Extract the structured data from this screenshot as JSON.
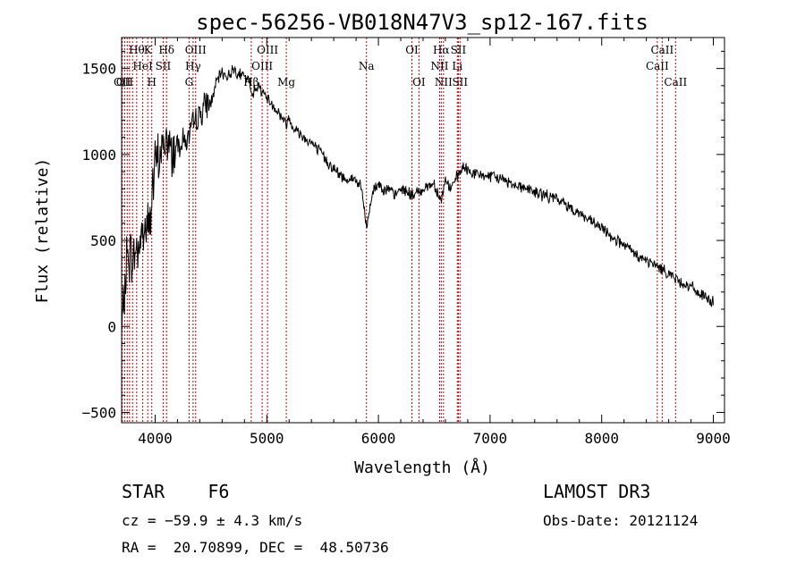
{
  "chart_data": {
    "type": "line",
    "title": "spec-56256-VB018N47V3_sp12-167.fits",
    "xlabel": "Wavelength (Å)",
    "ylabel": "Flux (relative)",
    "xlim": [
      3700,
      9100
    ],
    "ylim": [
      -560,
      1680
    ],
    "x_ticks": [
      4000,
      5000,
      6000,
      7000,
      8000,
      9000
    ],
    "y_ticks": [
      -500,
      0,
      500,
      1000,
      1500
    ],
    "series": [
      {
        "name": "spectrum",
        "color": "#000000",
        "x": [
          3700,
          3750,
          3800,
          3850,
          3900,
          3950,
          4000,
          4050,
          4100,
          4150,
          4200,
          4250,
          4300,
          4350,
          4400,
          4450,
          4500,
          4550,
          4600,
          4650,
          4700,
          4750,
          4800,
          4850,
          4861,
          4900,
          4950,
          5000,
          5050,
          5100,
          5150,
          5175,
          5200,
          5250,
          5300,
          5350,
          5400,
          5450,
          5500,
          5550,
          5600,
          5650,
          5700,
          5750,
          5800,
          5850,
          5893,
          5950,
          6000,
          6050,
          6100,
          6150,
          6200,
          6250,
          6300,
          6350,
          6400,
          6450,
          6500,
          6563,
          6600,
          6650,
          6700,
          6750,
          6800,
          6850,
          6900,
          6950,
          7000,
          7100,
          7200,
          7300,
          7400,
          7500,
          7600,
          7700,
          7800,
          7900,
          8000,
          8100,
          8200,
          8300,
          8400,
          8500,
          8600,
          8700,
          8800,
          8900,
          9000
        ],
        "values": [
          -50,
          420,
          390,
          470,
          560,
          610,
          930,
          1010,
          1080,
          1010,
          1070,
          1080,
          1090,
          1190,
          1230,
          1290,
          1300,
          1420,
          1480,
          1450,
          1500,
          1470,
          1450,
          1420,
          1330,
          1400,
          1380,
          1330,
          1290,
          1250,
          1200,
          1180,
          1210,
          1150,
          1120,
          1090,
          1070,
          1030,
          1000,
          950,
          920,
          880,
          860,
          860,
          850,
          800,
          570,
          790,
          830,
          800,
          790,
          760,
          800,
          790,
          760,
          780,
          800,
          820,
          830,
          730,
          850,
          800,
          860,
          920,
          910,
          890,
          880,
          880,
          870,
          860,
          830,
          810,
          780,
          760,
          740,
          700,
          660,
          610,
          570,
          520,
          470,
          420,
          380,
          350,
          310,
          260,
          230,
          180,
          140
        ]
      }
    ],
    "lines": [
      {
        "wl": 3705,
        "label": "OII",
        "row": 2
      },
      {
        "wl": 3727,
        "label": "OII",
        "row": 2
      },
      {
        "wl": 3750,
        "label": "",
        "row": 0
      },
      {
        "wl": 3771,
        "label": "",
        "row": 0
      },
      {
        "wl": 3798,
        "label": "",
        "row": 0
      },
      {
        "wl": 3835,
        "label": "Hθ",
        "row": 0
      },
      {
        "wl": 3889,
        "label": "HeI",
        "row": 1
      },
      {
        "wl": 3934,
        "label": "K",
        "row": 0
      },
      {
        "wl": 3970,
        "label": "H",
        "row": 2
      },
      {
        "wl": 4072,
        "label": "SII",
        "row": 1
      },
      {
        "wl": 4102,
        "label": "Hδ",
        "row": 0
      },
      {
        "wl": 4304,
        "label": "G",
        "row": 2
      },
      {
        "wl": 4340,
        "label": "Hγ",
        "row": 1
      },
      {
        "wl": 4363,
        "label": "OIII",
        "row": 0
      },
      {
        "wl": 4861,
        "label": "Hβ",
        "row": 2
      },
      {
        "wl": 4959,
        "label": "OIII",
        "row": 1
      },
      {
        "wl": 5007,
        "label": "OIII",
        "row": 0
      },
      {
        "wl": 5175,
        "label": "Mg",
        "row": 2
      },
      {
        "wl": 5893,
        "label": "Na",
        "row": 1
      },
      {
        "wl": 6300,
        "label": "OI",
        "row": 0
      },
      {
        "wl": 6363,
        "label": "OI",
        "row": 2
      },
      {
        "wl": 6548,
        "label": "NII",
        "row": 1
      },
      {
        "wl": 6563,
        "label": "Hα",
        "row": 0
      },
      {
        "wl": 6583,
        "label": "NII",
        "row": 2
      },
      {
        "wl": 6707,
        "label": "Li",
        "row": 1
      },
      {
        "wl": 6716,
        "label": "SII",
        "row": 0
      },
      {
        "wl": 6731,
        "label": "SII",
        "row": 2
      },
      {
        "wl": 8498,
        "label": "CaII",
        "row": 1
      },
      {
        "wl": 8542,
        "label": "CaII",
        "row": 0
      },
      {
        "wl": 8662,
        "label": "CaII",
        "row": 2
      }
    ],
    "line_color": "#cc0000"
  },
  "info": {
    "class": "STAR",
    "subclass": "F6",
    "survey": "LAMOST DR3",
    "cz": "cz = −59.9 ± 4.3 km/s",
    "obs_date": "Obs-Date: 20121124",
    "radec": "RA =  20.70899, DEC =  48.50736"
  }
}
